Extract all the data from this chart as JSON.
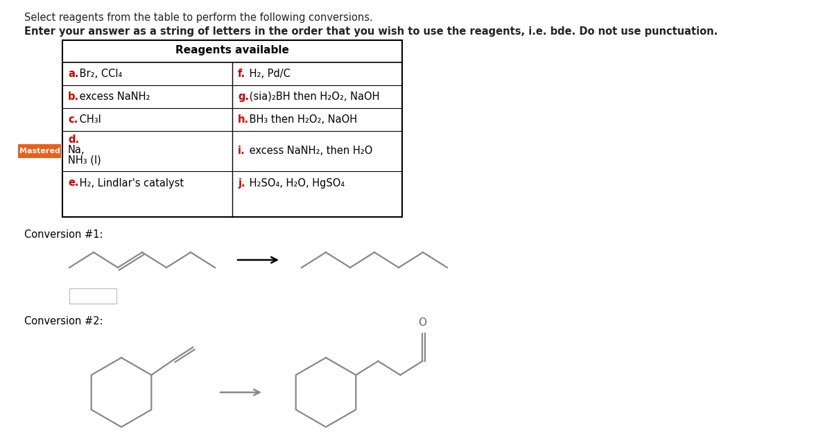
{
  "title_line1": "Select reagents from the table to perform the following conversions.",
  "title_line2": "Enter your answer as a string of letters in the order that you wish to use the reagents, i.e. bde. Do not use punctuation.",
  "table_header": "Reagents available",
  "conversion1_label": "Conversion #1:",
  "conversion2_label": "Conversion #2:",
  "mastered_label": "Mastered",
  "mastered_color": "#E8601C",
  "bg_color": "#ffffff",
  "red_color": "#cc0000",
  "line_color": "#888888",
  "row_left": [
    "a.",
    " Br₂, CCl₄",
    "b.",
    " excess NaNH₂",
    "c.",
    " CH₃I",
    "d.",
    "e.",
    " H₂, Lindlar's catalyst"
  ],
  "row_right": [
    "f.",
    " H₂, Pd/C",
    "g.",
    " (sia)₂BH then H₂O₂, NaOH",
    "h.",
    " BH₃ then H₂O₂, NaOH",
    "i.",
    " excess NaNH₂, then H₂O",
    "j.",
    " H₂SO₄, H₂O, HgSO₄"
  ]
}
